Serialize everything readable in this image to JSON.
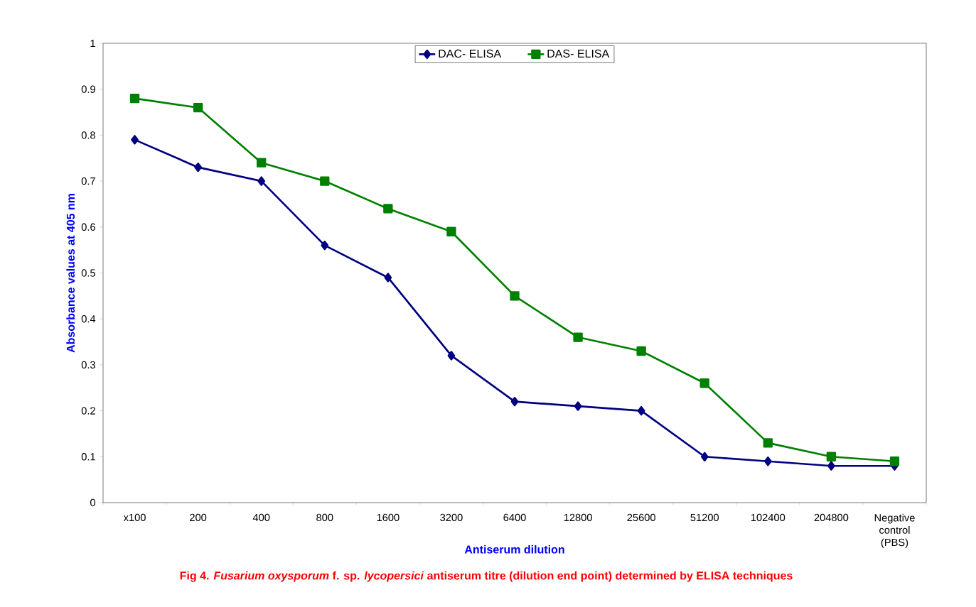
{
  "chart_data": {
    "type": "line",
    "xlabel": "Antiserum dilution",
    "ylabel": "Absorbance values at 405 nm",
    "categories": [
      "x100",
      "200",
      "400",
      "800",
      "1600",
      "3200",
      "6400",
      "12800",
      "25600",
      "51200",
      "102400",
      "204800",
      "Negative control (PBS)"
    ],
    "series": [
      {
        "name": "DAC- ELISA",
        "color": "#000080",
        "marker": "diamond",
        "values": [
          0.79,
          0.73,
          0.7,
          0.56,
          0.49,
          0.32,
          0.22,
          0.21,
          0.2,
          0.1,
          0.09,
          0.08,
          0.08
        ]
      },
      {
        "name": "DAS- ELISA",
        "color": "#008000",
        "marker": "square",
        "values": [
          0.88,
          0.86,
          0.74,
          0.7,
          0.64,
          0.59,
          0.45,
          0.36,
          0.33,
          0.26,
          0.13,
          0.1,
          0.09
        ]
      }
    ],
    "ylim": [
      0,
      1
    ],
    "yticks": [
      0,
      0.1,
      0.2,
      0.3,
      0.4,
      0.5,
      0.6,
      0.7,
      0.8,
      0.9,
      1
    ],
    "grid": false,
    "legend": "top",
    "line_style": "solid",
    "annotations": [
      "Fig 4. *Fusarium oxysporum* f. sp. *lycopersici* antiserum titre (dilution  end point) determined by ELISA techniques"
    ]
  }
}
